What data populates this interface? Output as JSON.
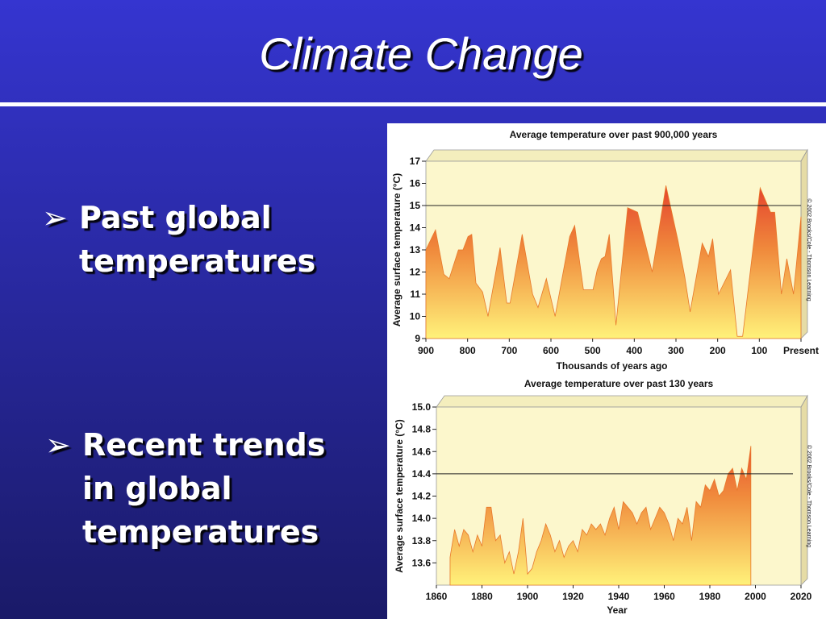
{
  "slide": {
    "title": "Climate Change",
    "bullets": [
      [
        "Past global",
        "temperatures"
      ],
      [
        "Recent trends",
        "in global",
        "temperatures"
      ]
    ]
  },
  "chart_data": [
    {
      "type": "area",
      "title": "Average temperature over past 900,000 years",
      "y_label": "Average surface temperature (°C)",
      "x_label": "Thousands of years ago",
      "annotation": "© 2002 Brooks/Cole - Thomson Learning",
      "x": [
        900,
        877,
        857,
        844,
        822,
        811,
        799,
        790,
        780,
        764,
        751,
        722,
        706,
        698,
        669,
        644,
        631,
        611,
        590,
        555,
        543,
        522,
        499,
        489,
        479,
        470,
        460,
        444,
        416,
        392,
        357,
        324,
        295,
        279,
        266,
        237,
        222,
        212,
        198,
        169,
        153,
        140,
        98,
        73,
        63,
        47,
        34,
        18,
        0
      ],
      "values": [
        13.0,
        13.9,
        11.9,
        11.7,
        13.0,
        13.0,
        13.6,
        13.7,
        11.5,
        11.1,
        10.0,
        13.1,
        10.6,
        10.6,
        13.7,
        11.0,
        10.4,
        11.7,
        10.0,
        13.6,
        14.1,
        11.2,
        11.2,
        12.1,
        12.6,
        12.7,
        13.7,
        9.6,
        14.9,
        14.7,
        12.0,
        15.9,
        13.4,
        11.8,
        10.2,
        13.3,
        12.7,
        13.5,
        11.0,
        12.1,
        9.1,
        9.1,
        15.8,
        14.7,
        14.7,
        11.0,
        12.6,
        11.0,
        14.5
      ],
      "hline": 15,
      "xlim": [
        900,
        0
      ],
      "ylim": [
        9,
        17
      ],
      "xticks": [
        900,
        800,
        700,
        600,
        500,
        400,
        300,
        200,
        100,
        {
          "value": 0,
          "label": "Present"
        }
      ],
      "yticks": [
        9,
        10,
        11,
        12,
        13,
        14,
        15,
        16,
        17
      ]
    },
    {
      "type": "area",
      "title": "Average temperature over past 130 years",
      "y_label": "Average surface temperature (°C)",
      "x_label": "Year",
      "annotation": "© 2002 Brooks/Cole - Thomson Learning",
      "x": [
        1866,
        1868,
        1870,
        1872,
        1874,
        1876,
        1878,
        1880,
        1882,
        1884,
        1886,
        1888,
        1890,
        1892,
        1894,
        1896,
        1898,
        1900,
        1902,
        1904,
        1906,
        1908,
        1910,
        1912,
        1914,
        1916,
        1918,
        1920,
        1922,
        1924,
        1926,
        1928,
        1930,
        1932,
        1934,
        1936,
        1938,
        1940,
        1942,
        1944,
        1946,
        1948,
        1950,
        1952,
        1954,
        1956,
        1958,
        1960,
        1962,
        1964,
        1966,
        1968,
        1970,
        1972,
        1974,
        1976,
        1978,
        1980,
        1982,
        1984,
        1986,
        1988,
        1990,
        1992,
        1994,
        1996,
        1998
      ],
      "values": [
        13.65,
        13.9,
        13.75,
        13.9,
        13.85,
        13.7,
        13.85,
        13.75,
        14.1,
        14.1,
        13.8,
        13.85,
        13.6,
        13.7,
        13.5,
        13.7,
        14.0,
        13.5,
        13.55,
        13.7,
        13.8,
        13.95,
        13.85,
        13.7,
        13.8,
        13.65,
        13.75,
        13.8,
        13.7,
        13.9,
        13.85,
        13.95,
        13.9,
        13.95,
        13.85,
        14.0,
        14.1,
        13.9,
        14.15,
        14.1,
        14.05,
        13.95,
        14.05,
        14.1,
        13.9,
        14.0,
        14.1,
        14.05,
        13.95,
        13.8,
        14.0,
        13.95,
        14.1,
        13.8,
        14.15,
        14.1,
        14.3,
        14.25,
        14.35,
        14.2,
        14.25,
        14.4,
        14.45,
        14.25,
        14.45,
        14.35,
        14.65
      ],
      "hline": 14.4,
      "xlim": [
        1860,
        2020
      ],
      "ylim": [
        13.4,
        15.0
      ],
      "xticks": [
        1860,
        1880,
        1900,
        1920,
        1940,
        1960,
        1980,
        2000,
        2020
      ],
      "yticks": [
        {
          "value": 13.6,
          "label": "13.6"
        },
        {
          "value": 13.8,
          "label": "13.8"
        },
        {
          "value": 14.0,
          "label": "14.0"
        },
        {
          "value": 14.2,
          "label": "14.2"
        },
        {
          "value": 14.4,
          "label": "14.4"
        },
        {
          "value": 14.6,
          "label": "14.6"
        },
        {
          "value": 14.8,
          "label": "14.8"
        },
        {
          "value": 15.0,
          "label": "15.0"
        }
      ]
    }
  ]
}
